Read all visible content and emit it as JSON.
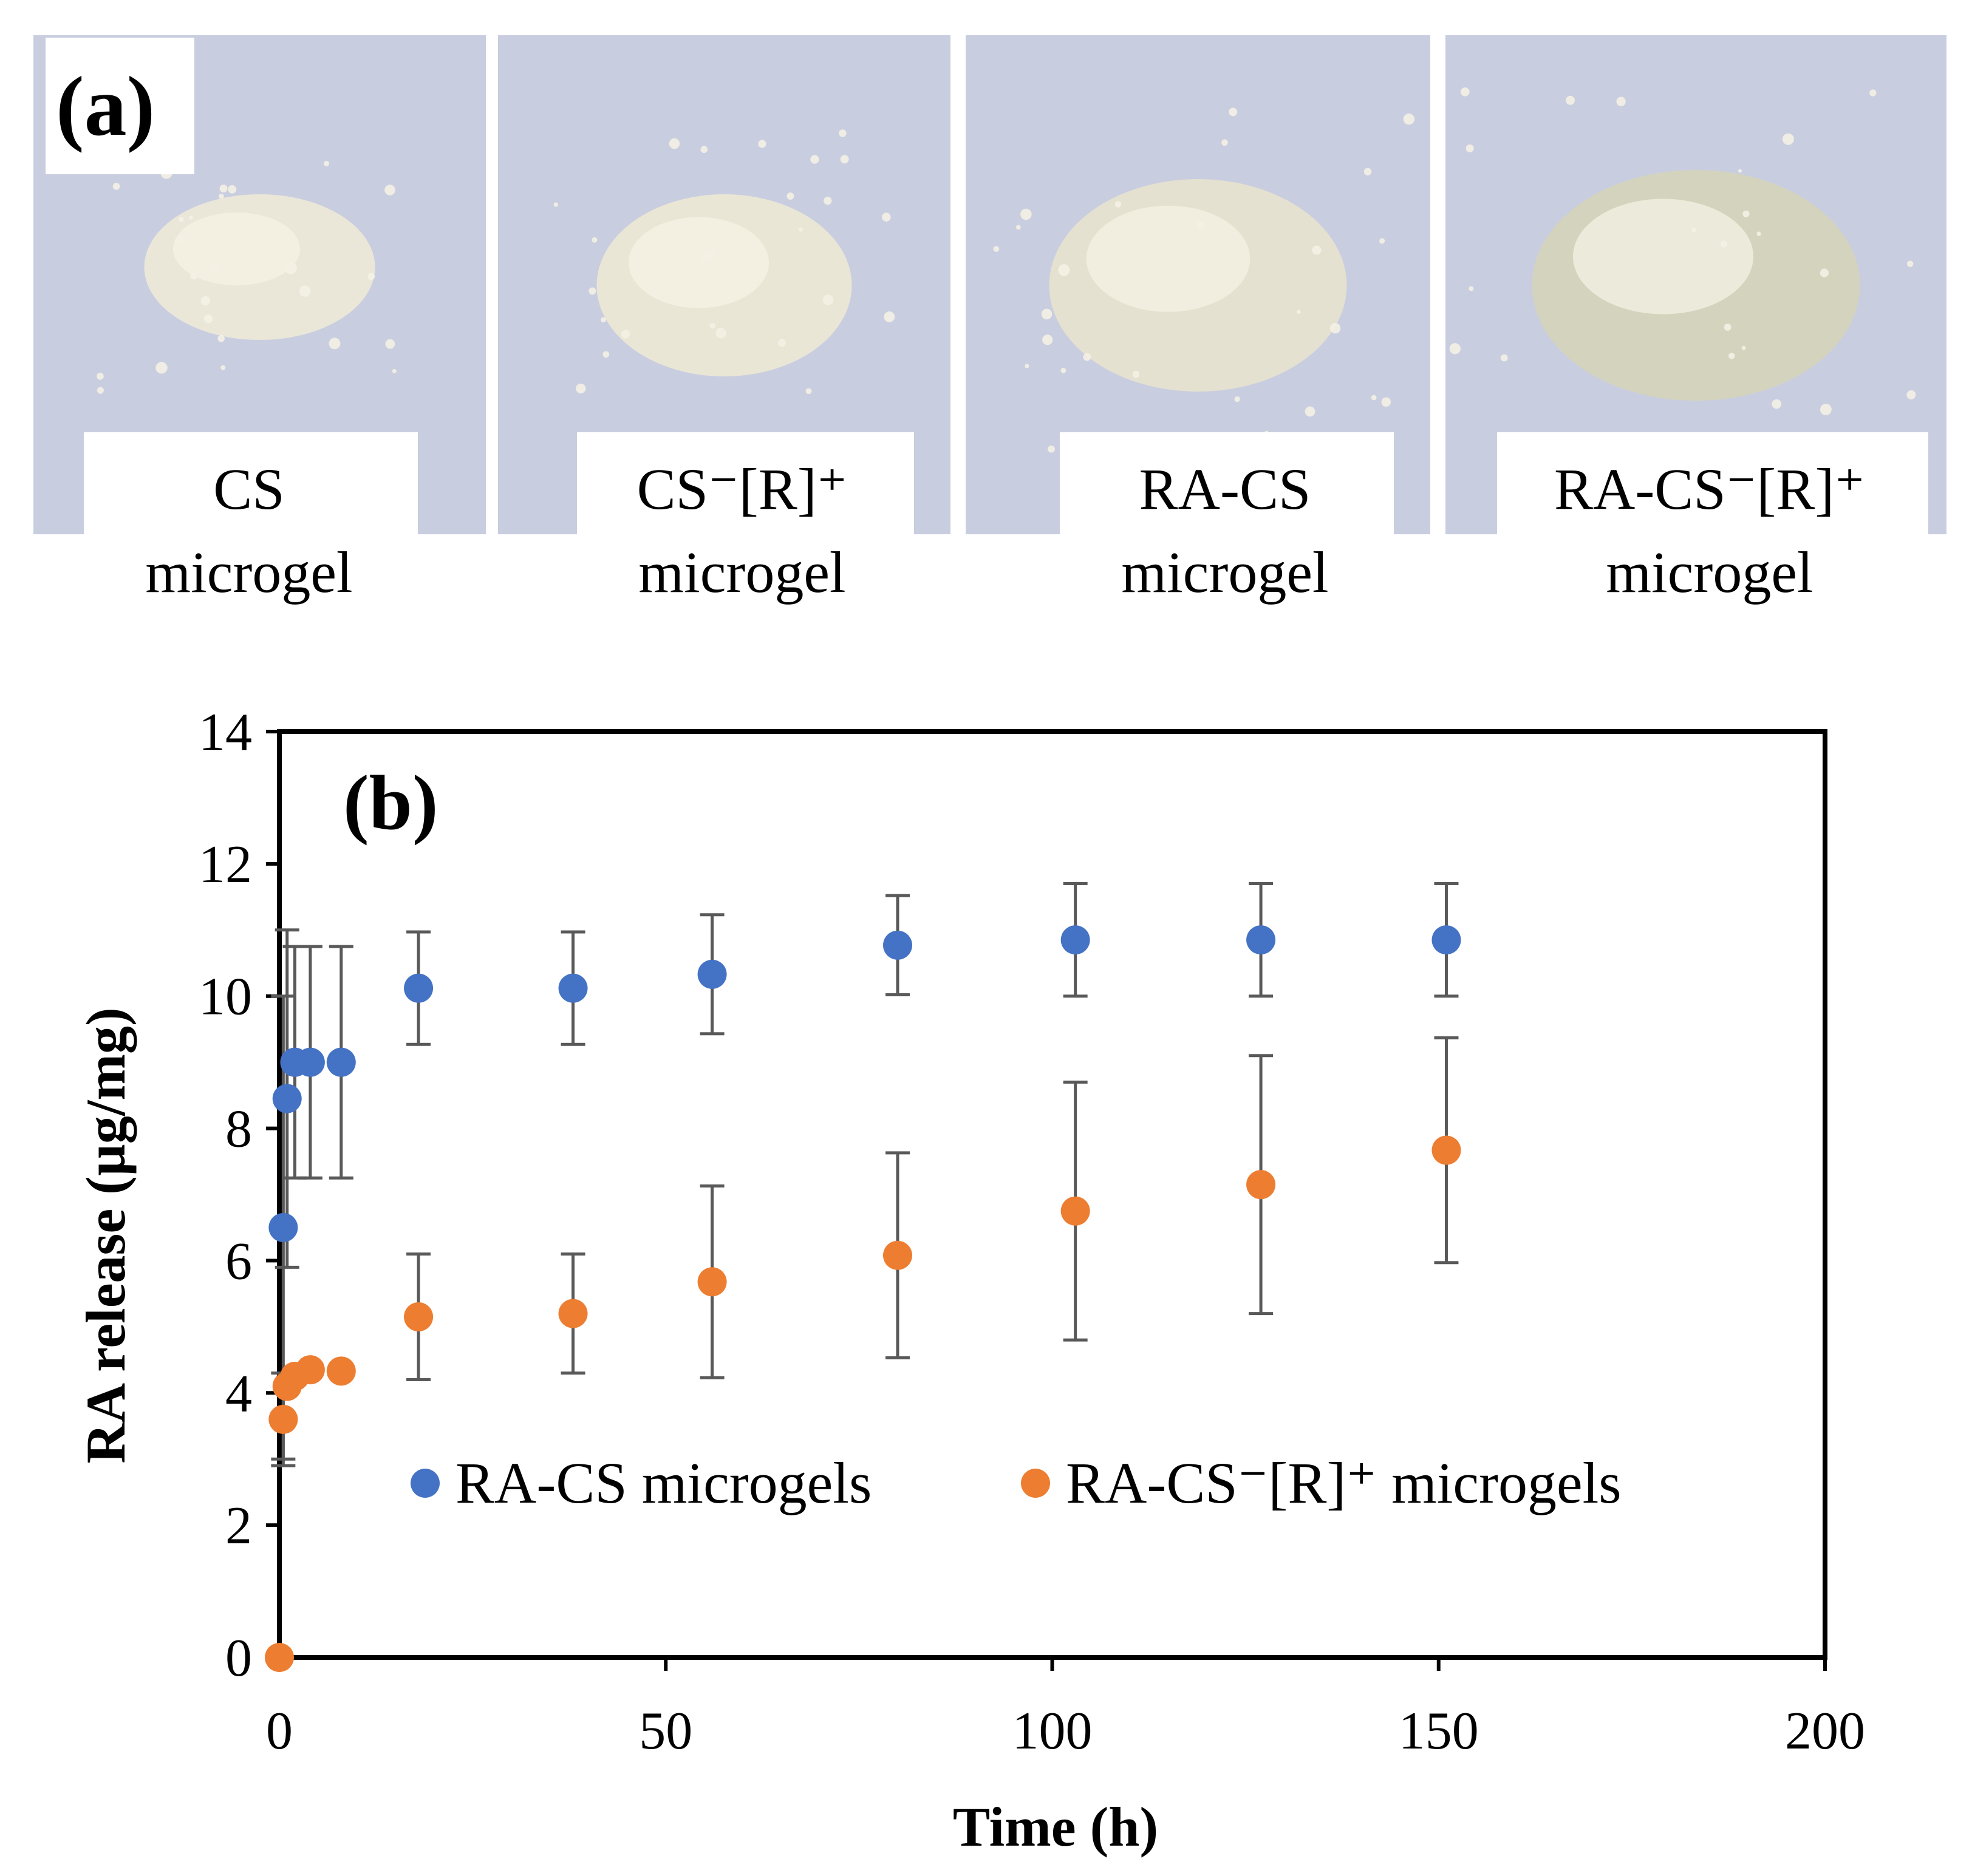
{
  "panel_a": {
    "label": "(a)",
    "samples": [
      {
        "name": "CS",
        "sub": "microgel",
        "powder_color": "#ece8d8"
      },
      {
        "name": "CS⁻[R]⁺",
        "sub": "microgel",
        "powder_color": "#ebe7d5"
      },
      {
        "name": "RA-CS",
        "sub": "microgel",
        "powder_color": "#e7e2cf"
      },
      {
        "name": "RA-CS⁻[R]⁺",
        "sub": "microgel",
        "powder_color": "#d5d4bc"
      }
    ],
    "background_color": "#c9cde0"
  },
  "chart_data": {
    "type": "scatter",
    "panel_label": "(b)",
    "xlabel": "Time (h)",
    "ylabel": "RA release (µg/mg)",
    "xlim": [
      0,
      200
    ],
    "ylim": [
      0,
      14
    ],
    "xticks": [
      0,
      50,
      100,
      150,
      200
    ],
    "yticks": [
      0,
      2,
      4,
      6,
      8,
      10,
      12,
      14
    ],
    "legend_position": "middle",
    "series": [
      {
        "name": "RA-CS microgels",
        "color": "#4472c4",
        "x": [
          0.5,
          1,
          2,
          4,
          8,
          18,
          38,
          56,
          80,
          103,
          127,
          151
        ],
        "y": [
          6.5,
          8.45,
          9.0,
          9.0,
          9.0,
          10.12,
          10.12,
          10.33,
          10.77,
          10.85,
          10.85,
          10.85
        ],
        "err": [
          3.5,
          2.55,
          1.75,
          1.75,
          1.75,
          0.85,
          0.85,
          0.9,
          0.75,
          0.85,
          0.85,
          0.85
        ]
      },
      {
        "name": "RA-CS⁻[R]⁺ microgels",
        "color": "#ed7d31",
        "x": [
          0,
          0.5,
          1,
          2,
          4,
          8,
          18,
          38,
          56,
          80,
          103,
          127,
          151
        ],
        "y": [
          0,
          3.6,
          4.1,
          4.25,
          4.35,
          4.33,
          5.15,
          5.2,
          5.68,
          6.08,
          6.75,
          7.15,
          7.67
        ],
        "err": [
          0,
          0.7,
          0,
          0,
          0,
          0,
          0.95,
          0.9,
          1.45,
          1.55,
          1.95,
          1.95,
          1.7
        ]
      }
    ]
  }
}
